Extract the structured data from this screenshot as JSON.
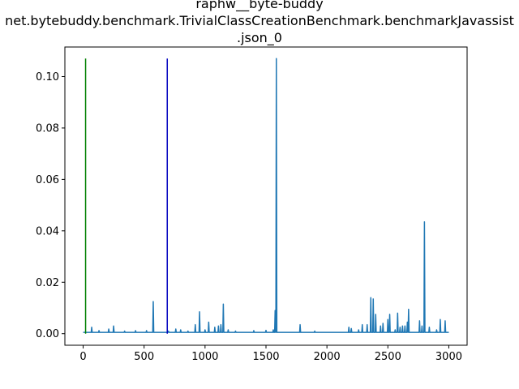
{
  "chart_data": {
    "type": "line",
    "title_lines": [
      "raphw__byte-buddy",
      "net.bytebuddy.benchmark.TrivialClassCreationBenchmark.benchmarkJavassist",
      ".json_0"
    ],
    "xlabel": "",
    "ylabel": "",
    "xlim": [
      -150,
      3150
    ],
    "ylim": [
      -0.0045,
      0.1115
    ],
    "xticks": [
      0,
      500,
      1000,
      1500,
      2000,
      2500,
      3000
    ],
    "yticks": [
      0.0,
      0.02,
      0.04,
      0.06,
      0.08,
      0.1
    ],
    "ytick_labels": [
      "0.00",
      "0.02",
      "0.04",
      "0.06",
      "0.08",
      "0.10"
    ],
    "grid": false,
    "legend": "none",
    "vlines": [
      {
        "x": 20,
        "ymin": 0.0,
        "ymax": 0.107,
        "color": "#008000"
      },
      {
        "x": 690,
        "ymin": 0.0,
        "ymax": 0.107,
        "color": "#0000bf"
      }
    ],
    "series": [
      {
        "color": "#1f77b4",
        "baseline": 0.0005,
        "x_range": [
          0,
          3000
        ],
        "spikes": [
          [
            70,
            0.0025
          ],
          [
            130,
            0.0012
          ],
          [
            210,
            0.0018
          ],
          [
            250,
            0.003
          ],
          [
            340,
            0.001
          ],
          [
            430,
            0.0012
          ],
          [
            520,
            0.0012
          ],
          [
            575,
            0.0125
          ],
          [
            700,
            0.001
          ],
          [
            760,
            0.0018
          ],
          [
            800,
            0.0015
          ],
          [
            860,
            0.001
          ],
          [
            920,
            0.0035
          ],
          [
            955,
            0.0085
          ],
          [
            1000,
            0.0015
          ],
          [
            1030,
            0.0045
          ],
          [
            1080,
            0.0025
          ],
          [
            1110,
            0.003
          ],
          [
            1130,
            0.0035
          ],
          [
            1150,
            0.0115
          ],
          [
            1190,
            0.0015
          ],
          [
            1250,
            0.001
          ],
          [
            1400,
            0.0012
          ],
          [
            1500,
            0.0013
          ],
          [
            1560,
            0.0015
          ],
          [
            1575,
            0.009
          ],
          [
            1585,
            0.107
          ],
          [
            1780,
            0.0035
          ],
          [
            1900,
            0.001
          ],
          [
            2180,
            0.0025
          ],
          [
            2200,
            0.002
          ],
          [
            2260,
            0.0015
          ],
          [
            2290,
            0.0035
          ],
          [
            2330,
            0.0035
          ],
          [
            2360,
            0.014
          ],
          [
            2380,
            0.0135
          ],
          [
            2400,
            0.0075
          ],
          [
            2440,
            0.003
          ],
          [
            2460,
            0.004
          ],
          [
            2500,
            0.0055
          ],
          [
            2515,
            0.0075
          ],
          [
            2560,
            0.0015
          ],
          [
            2580,
            0.008
          ],
          [
            2600,
            0.0025
          ],
          [
            2620,
            0.003
          ],
          [
            2640,
            0.003
          ],
          [
            2660,
            0.0045
          ],
          [
            2670,
            0.0095
          ],
          [
            2760,
            0.005
          ],
          [
            2780,
            0.003
          ],
          [
            2800,
            0.0435
          ],
          [
            2840,
            0.0025
          ],
          [
            2900,
            0.0015
          ],
          [
            2930,
            0.0055
          ],
          [
            2970,
            0.005
          ]
        ]
      }
    ]
  }
}
